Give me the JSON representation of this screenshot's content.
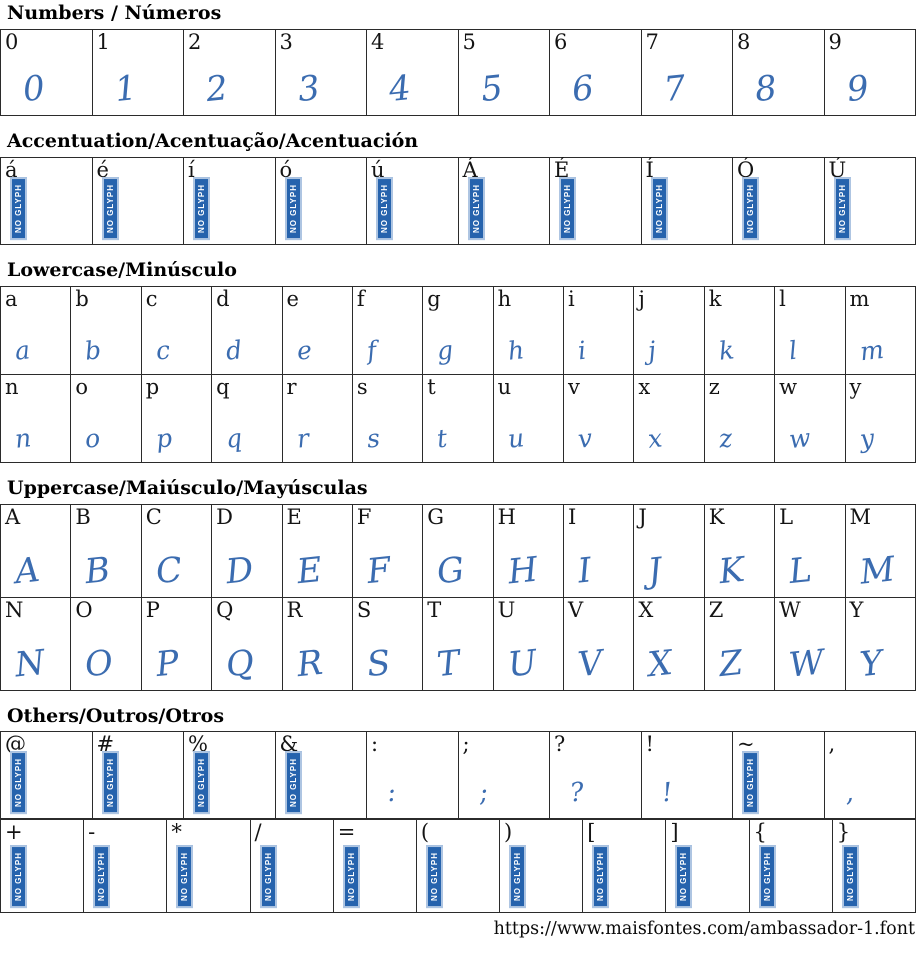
{
  "no_glyph_label": "NO GLYPH",
  "colors": {
    "glyph_blue": "#3b6cb0",
    "badge_blue": "#2663ad",
    "badge_border": "#aec5e2",
    "grid_border": "#2b2b2b"
  },
  "page": {
    "footer_url": "https://www.maisfontes.com/ambassador-1.font"
  },
  "sections": [
    {
      "id": "numbers",
      "title": "Numbers / Números",
      "tables": [
        {
          "rows": [
            [
              {
                "label": "0",
                "glyph": "0"
              },
              {
                "label": "1",
                "glyph": "1"
              },
              {
                "label": "2",
                "glyph": "2"
              },
              {
                "label": "3",
                "glyph": "3"
              },
              {
                "label": "4",
                "glyph": "4"
              },
              {
                "label": "5",
                "glyph": "5"
              },
              {
                "label": "6",
                "glyph": "6"
              },
              {
                "label": "7",
                "glyph": "7"
              },
              {
                "label": "8",
                "glyph": "8"
              },
              {
                "label": "9",
                "glyph": "9"
              }
            ]
          ]
        }
      ]
    },
    {
      "id": "accentuation",
      "title": "Accentuation/Acentuação/Acentuación",
      "tables": [
        {
          "rows": [
            [
              {
                "label": "á",
                "glyph": null
              },
              {
                "label": "é",
                "glyph": null
              },
              {
                "label": "í",
                "glyph": null
              },
              {
                "label": "ó",
                "glyph": null
              },
              {
                "label": "ú",
                "glyph": null
              },
              {
                "label": "Á",
                "glyph": null
              },
              {
                "label": "É",
                "glyph": null
              },
              {
                "label": "Í",
                "glyph": null
              },
              {
                "label": "Ó",
                "glyph": null
              },
              {
                "label": "Ú",
                "glyph": null
              }
            ]
          ]
        }
      ]
    },
    {
      "id": "lowercase",
      "title": "Lowercase/Minúsculo",
      "tables": [
        {
          "rows": [
            [
              {
                "label": "a",
                "glyph": "a"
              },
              {
                "label": "b",
                "glyph": "b"
              },
              {
                "label": "c",
                "glyph": "c"
              },
              {
                "label": "d",
                "glyph": "d"
              },
              {
                "label": "e",
                "glyph": "e"
              },
              {
                "label": "f",
                "glyph": "f"
              },
              {
                "label": "g",
                "glyph": "g"
              },
              {
                "label": "h",
                "glyph": "h"
              },
              {
                "label": "i",
                "glyph": "i"
              },
              {
                "label": "j",
                "glyph": "j"
              },
              {
                "label": "k",
                "glyph": "k"
              },
              {
                "label": "l",
                "glyph": "l"
              },
              {
                "label": "m",
                "glyph": "m"
              }
            ],
            [
              {
                "label": "n",
                "glyph": "n"
              },
              {
                "label": "o",
                "glyph": "o"
              },
              {
                "label": "p",
                "glyph": "p"
              },
              {
                "label": "q",
                "glyph": "q"
              },
              {
                "label": "r",
                "glyph": "r"
              },
              {
                "label": "s",
                "glyph": "s"
              },
              {
                "label": "t",
                "glyph": "t"
              },
              {
                "label": "u",
                "glyph": "u"
              },
              {
                "label": "v",
                "glyph": "v"
              },
              {
                "label": "x",
                "glyph": "x"
              },
              {
                "label": "z",
                "glyph": "z"
              },
              {
                "label": "w",
                "glyph": "w"
              },
              {
                "label": "y",
                "glyph": "y"
              }
            ]
          ]
        }
      ]
    },
    {
      "id": "uppercase",
      "title": "Uppercase/Maiúsculo/Mayúsculas",
      "tables": [
        {
          "rows": [
            [
              {
                "label": "A",
                "glyph": "A"
              },
              {
                "label": "B",
                "glyph": "B"
              },
              {
                "label": "C",
                "glyph": "C"
              },
              {
                "label": "D",
                "glyph": "D"
              },
              {
                "label": "E",
                "glyph": "E"
              },
              {
                "label": "F",
                "glyph": "F"
              },
              {
                "label": "G",
                "glyph": "G"
              },
              {
                "label": "H",
                "glyph": "H"
              },
              {
                "label": "I",
                "glyph": "I"
              },
              {
                "label": "J",
                "glyph": "J"
              },
              {
                "label": "K",
                "glyph": "K"
              },
              {
                "label": "L",
                "glyph": "L"
              },
              {
                "label": "M",
                "glyph": "M"
              }
            ],
            [
              {
                "label": "N",
                "glyph": "N"
              },
              {
                "label": "O",
                "glyph": "O"
              },
              {
                "label": "P",
                "glyph": "P"
              },
              {
                "label": "Q",
                "glyph": "Q"
              },
              {
                "label": "R",
                "glyph": "R"
              },
              {
                "label": "S",
                "glyph": "S"
              },
              {
                "label": "T",
                "glyph": "T"
              },
              {
                "label": "U",
                "glyph": "U"
              },
              {
                "label": "V",
                "glyph": "V"
              },
              {
                "label": "X",
                "glyph": "X"
              },
              {
                "label": "Z",
                "glyph": "Z"
              },
              {
                "label": "W",
                "glyph": "W"
              },
              {
                "label": "Y",
                "glyph": "Y"
              }
            ]
          ]
        }
      ]
    },
    {
      "id": "others",
      "title": "Others/Outros/Otros",
      "tables": [
        {
          "rows": [
            [
              {
                "label": "@",
                "glyph": null
              },
              {
                "label": "#",
                "glyph": null
              },
              {
                "label": "%",
                "glyph": null
              },
              {
                "label": "&",
                "glyph": null
              },
              {
                "label": ":",
                "glyph": ":"
              },
              {
                "label": ";",
                "glyph": ";"
              },
              {
                "label": "?",
                "glyph": "?"
              },
              {
                "label": "!",
                "glyph": "!"
              },
              {
                "label": "~",
                "glyph": null
              },
              {
                "label": ",",
                "glyph": ","
              }
            ]
          ]
        },
        {
          "rows": [
            [
              {
                "label": "+",
                "glyph": null
              },
              {
                "label": "-",
                "glyph": null
              },
              {
                "label": "*",
                "glyph": null
              },
              {
                "label": "/",
                "glyph": null
              },
              {
                "label": "=",
                "glyph": null
              },
              {
                "label": "(",
                "glyph": null
              },
              {
                "label": ")",
                "glyph": null
              },
              {
                "label": "[",
                "glyph": null
              },
              {
                "label": "]",
                "glyph": null
              },
              {
                "label": "{",
                "glyph": null
              },
              {
                "label": "}",
                "glyph": null
              }
            ]
          ]
        }
      ]
    }
  ]
}
